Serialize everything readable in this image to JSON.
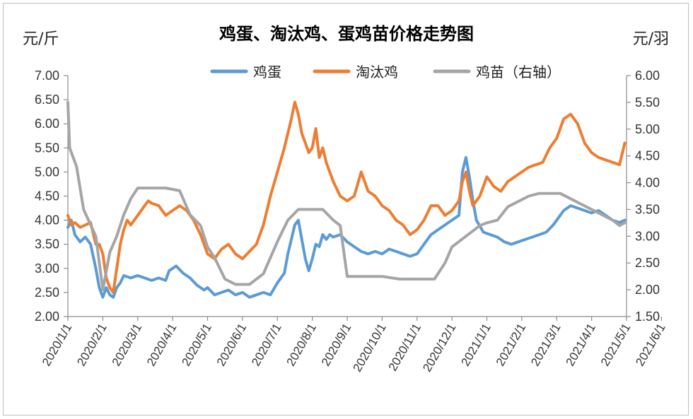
{
  "chart_data": {
    "type": "line",
    "title": "鸡蛋、淘汰鸡、蛋鸡苗价格走势图",
    "ylabel_left": "元/斤",
    "ylabel_right": "元/羽",
    "ylim_left": [
      2.0,
      7.0
    ],
    "ylim_right": [
      1.5,
      6.0
    ],
    "yticks_left": [
      "2.00",
      "2.50",
      "3.00",
      "3.50",
      "4.00",
      "4.50",
      "5.00",
      "5.50",
      "6.00",
      "6.50",
      "7.00"
    ],
    "yticks_right": [
      "1.50",
      "2.00",
      "2.50",
      "3.00",
      "3.50",
      "4.00",
      "4.50",
      "5.00",
      "5.50",
      "6.00"
    ],
    "x_categories": [
      "2020/1/1",
      "2020/2/1",
      "2020/3/1",
      "2020/4/1",
      "2020/5/1",
      "2020/6/1",
      "2020/7/1",
      "2020/8/1",
      "2020/9/1",
      "2020/10/1",
      "2020/11/1",
      "2020/12/1",
      "2021/1/1",
      "2021/2/1",
      "2021/3/1",
      "2021/4/1",
      "2021/5/1",
      "2021/6/1"
    ],
    "legend_position": "top-center",
    "grid": false,
    "series": [
      {
        "name": "鸡蛋",
        "axis": "left",
        "color": "#5b9bd5",
        "points": [
          [
            0,
            3.85
          ],
          [
            0.1,
            4.0
          ],
          [
            0.2,
            3.7
          ],
          [
            0.35,
            3.55
          ],
          [
            0.5,
            3.65
          ],
          [
            0.65,
            3.5
          ],
          [
            0.8,
            3.0
          ],
          [
            0.9,
            2.6
          ],
          [
            1.0,
            2.4
          ],
          [
            1.1,
            2.6
          ],
          [
            1.2,
            2.45
          ],
          [
            1.3,
            2.4
          ],
          [
            1.4,
            2.6
          ],
          [
            1.5,
            2.7
          ],
          [
            1.6,
            2.85
          ],
          [
            1.8,
            2.8
          ],
          [
            2.0,
            2.85
          ],
          [
            2.2,
            2.8
          ],
          [
            2.4,
            2.75
          ],
          [
            2.6,
            2.8
          ],
          [
            2.8,
            2.75
          ],
          [
            2.9,
            2.95
          ],
          [
            3.1,
            3.05
          ],
          [
            3.3,
            2.9
          ],
          [
            3.5,
            2.8
          ],
          [
            3.7,
            2.65
          ],
          [
            3.9,
            2.55
          ],
          [
            4.0,
            2.6
          ],
          [
            4.2,
            2.45
          ],
          [
            4.4,
            2.5
          ],
          [
            4.6,
            2.55
          ],
          [
            4.8,
            2.45
          ],
          [
            5.0,
            2.5
          ],
          [
            5.2,
            2.4
          ],
          [
            5.4,
            2.45
          ],
          [
            5.6,
            2.5
          ],
          [
            5.8,
            2.45
          ],
          [
            6.0,
            2.7
          ],
          [
            6.2,
            2.9
          ],
          [
            6.3,
            3.3
          ],
          [
            6.5,
            3.9
          ],
          [
            6.6,
            4.0
          ],
          [
            6.7,
            3.6
          ],
          [
            6.8,
            3.2
          ],
          [
            6.9,
            2.95
          ],
          [
            7.0,
            3.2
          ],
          [
            7.1,
            3.5
          ],
          [
            7.2,
            3.45
          ],
          [
            7.3,
            3.7
          ],
          [
            7.4,
            3.6
          ],
          [
            7.5,
            3.7
          ],
          [
            7.6,
            3.65
          ],
          [
            7.8,
            3.7
          ],
          [
            8.0,
            3.55
          ],
          [
            8.2,
            3.45
          ],
          [
            8.4,
            3.35
          ],
          [
            8.6,
            3.3
          ],
          [
            8.8,
            3.35
          ],
          [
            9.0,
            3.3
          ],
          [
            9.2,
            3.4
          ],
          [
            9.4,
            3.35
          ],
          [
            9.6,
            3.3
          ],
          [
            9.8,
            3.25
          ],
          [
            10.0,
            3.3
          ],
          [
            10.2,
            3.5
          ],
          [
            10.4,
            3.7
          ],
          [
            10.6,
            3.8
          ],
          [
            10.8,
            3.9
          ],
          [
            11.0,
            4.0
          ],
          [
            11.2,
            4.1
          ],
          [
            11.3,
            5.0
          ],
          [
            11.4,
            5.3
          ],
          [
            11.5,
            4.9
          ],
          [
            11.6,
            4.4
          ],
          [
            11.7,
            4.0
          ],
          [
            11.9,
            3.75
          ],
          [
            12.1,
            3.7
          ],
          [
            12.3,
            3.65
          ],
          [
            12.5,
            3.55
          ],
          [
            12.7,
            3.5
          ],
          [
            12.9,
            3.55
          ],
          [
            13.1,
            3.6
          ],
          [
            13.3,
            3.65
          ],
          [
            13.5,
            3.7
          ],
          [
            13.7,
            3.75
          ],
          [
            13.9,
            3.9
          ],
          [
            14.0,
            4.0
          ],
          [
            14.2,
            4.2
          ],
          [
            14.4,
            4.3
          ],
          [
            14.6,
            4.25
          ],
          [
            14.8,
            4.2
          ],
          [
            15.0,
            4.15
          ],
          [
            15.2,
            4.2
          ],
          [
            15.4,
            4.1
          ],
          [
            15.6,
            4.0
          ],
          [
            15.8,
            3.95
          ],
          [
            15.95,
            4.0
          ]
        ]
      },
      {
        "name": "淘汰鸡",
        "axis": "left",
        "color": "#ed7d31",
        "points": [
          [
            0,
            4.1
          ],
          [
            0.1,
            3.9
          ],
          [
            0.2,
            3.95
          ],
          [
            0.35,
            3.85
          ],
          [
            0.5,
            3.9
          ],
          [
            0.65,
            3.95
          ],
          [
            0.8,
            3.5
          ],
          [
            0.9,
            3.5
          ],
          [
            1.0,
            3.3
          ],
          [
            1.1,
            2.8
          ],
          [
            1.2,
            2.6
          ],
          [
            1.3,
            2.5
          ],
          [
            1.4,
            3.0
          ],
          [
            1.5,
            3.5
          ],
          [
            1.6,
            3.8
          ],
          [
            1.7,
            4.0
          ],
          [
            1.8,
            3.9
          ],
          [
            2.0,
            4.1
          ],
          [
            2.2,
            4.3
          ],
          [
            2.3,
            4.4
          ],
          [
            2.4,
            4.35
          ],
          [
            2.6,
            4.3
          ],
          [
            2.8,
            4.1
          ],
          [
            3.0,
            4.2
          ],
          [
            3.2,
            4.3
          ],
          [
            3.4,
            4.2
          ],
          [
            3.6,
            4.0
          ],
          [
            3.8,
            3.7
          ],
          [
            4.0,
            3.3
          ],
          [
            4.2,
            3.2
          ],
          [
            4.4,
            3.4
          ],
          [
            4.6,
            3.5
          ],
          [
            4.8,
            3.3
          ],
          [
            5.0,
            3.2
          ],
          [
            5.2,
            3.35
          ],
          [
            5.4,
            3.5
          ],
          [
            5.6,
            3.9
          ],
          [
            5.8,
            4.5
          ],
          [
            6.0,
            5.0
          ],
          [
            6.2,
            5.5
          ],
          [
            6.4,
            6.1
          ],
          [
            6.5,
            6.45
          ],
          [
            6.6,
            6.2
          ],
          [
            6.7,
            5.8
          ],
          [
            6.8,
            5.6
          ],
          [
            6.9,
            5.4
          ],
          [
            7.0,
            5.5
          ],
          [
            7.1,
            5.9
          ],
          [
            7.2,
            5.3
          ],
          [
            7.3,
            5.5
          ],
          [
            7.4,
            5.2
          ],
          [
            7.5,
            5.0
          ],
          [
            7.6,
            4.8
          ],
          [
            7.8,
            4.5
          ],
          [
            8.0,
            4.4
          ],
          [
            8.2,
            4.5
          ],
          [
            8.4,
            5.0
          ],
          [
            8.6,
            4.6
          ],
          [
            8.8,
            4.5
          ],
          [
            9.0,
            4.3
          ],
          [
            9.2,
            4.2
          ],
          [
            9.4,
            4.0
          ],
          [
            9.6,
            3.9
          ],
          [
            9.8,
            3.7
          ],
          [
            10.0,
            3.8
          ],
          [
            10.2,
            4.0
          ],
          [
            10.4,
            4.3
          ],
          [
            10.6,
            4.3
          ],
          [
            10.8,
            4.1
          ],
          [
            11.0,
            4.2
          ],
          [
            11.2,
            4.4
          ],
          [
            11.3,
            4.8
          ],
          [
            11.4,
            5.0
          ],
          [
            11.5,
            4.6
          ],
          [
            11.6,
            4.3
          ],
          [
            11.8,
            4.5
          ],
          [
            12.0,
            4.9
          ],
          [
            12.2,
            4.7
          ],
          [
            12.4,
            4.6
          ],
          [
            12.6,
            4.8
          ],
          [
            12.8,
            4.9
          ],
          [
            13.0,
            5.0
          ],
          [
            13.2,
            5.1
          ],
          [
            13.4,
            5.15
          ],
          [
            13.6,
            5.2
          ],
          [
            13.8,
            5.5
          ],
          [
            14.0,
            5.7
          ],
          [
            14.2,
            6.1
          ],
          [
            14.4,
            6.2
          ],
          [
            14.6,
            6.0
          ],
          [
            14.8,
            5.6
          ],
          [
            15.0,
            5.4
          ],
          [
            15.2,
            5.3
          ],
          [
            15.4,
            5.25
          ],
          [
            15.6,
            5.2
          ],
          [
            15.8,
            5.15
          ],
          [
            15.95,
            5.6
          ]
        ]
      },
      {
        "name": "鸡苗（右轴）",
        "axis": "right",
        "color": "#a5a5a5",
        "points": [
          [
            0,
            5.5
          ],
          [
            0.05,
            4.65
          ],
          [
            0.25,
            4.3
          ],
          [
            0.45,
            3.5
          ],
          [
            0.8,
            3.0
          ],
          [
            1.0,
            2.0
          ],
          [
            1.2,
            2.7
          ],
          [
            1.4,
            3.0
          ],
          [
            1.6,
            3.4
          ],
          [
            1.8,
            3.7
          ],
          [
            2.0,
            3.9
          ],
          [
            2.4,
            3.9
          ],
          [
            2.8,
            3.9
          ],
          [
            3.2,
            3.85
          ],
          [
            3.5,
            3.4
          ],
          [
            3.8,
            3.2
          ],
          [
            4.0,
            2.8
          ],
          [
            4.2,
            2.6
          ],
          [
            4.5,
            2.2
          ],
          [
            4.8,
            2.1
          ],
          [
            5.2,
            2.1
          ],
          [
            5.6,
            2.3
          ],
          [
            6.0,
            2.9
          ],
          [
            6.3,
            3.3
          ],
          [
            6.6,
            3.5
          ],
          [
            7.0,
            3.5
          ],
          [
            7.3,
            3.5
          ],
          [
            7.6,
            3.3
          ],
          [
            7.8,
            3.2
          ],
          [
            8.0,
            2.25
          ],
          [
            8.5,
            2.25
          ],
          [
            9.0,
            2.25
          ],
          [
            9.5,
            2.2
          ],
          [
            10.0,
            2.2
          ],
          [
            10.5,
            2.2
          ],
          [
            10.8,
            2.5
          ],
          [
            11.0,
            2.8
          ],
          [
            11.2,
            2.9
          ],
          [
            11.4,
            3.0
          ],
          [
            11.6,
            3.1
          ],
          [
            11.8,
            3.2
          ],
          [
            12.0,
            3.25
          ],
          [
            12.3,
            3.3
          ],
          [
            12.6,
            3.55
          ],
          [
            12.9,
            3.65
          ],
          [
            13.2,
            3.75
          ],
          [
            13.5,
            3.8
          ],
          [
            13.8,
            3.8
          ],
          [
            14.1,
            3.8
          ],
          [
            14.4,
            3.7
          ],
          [
            14.7,
            3.6
          ],
          [
            15.0,
            3.5
          ],
          [
            15.3,
            3.4
          ],
          [
            15.6,
            3.3
          ],
          [
            15.8,
            3.2
          ],
          [
            15.95,
            3.25
          ]
        ]
      }
    ]
  }
}
